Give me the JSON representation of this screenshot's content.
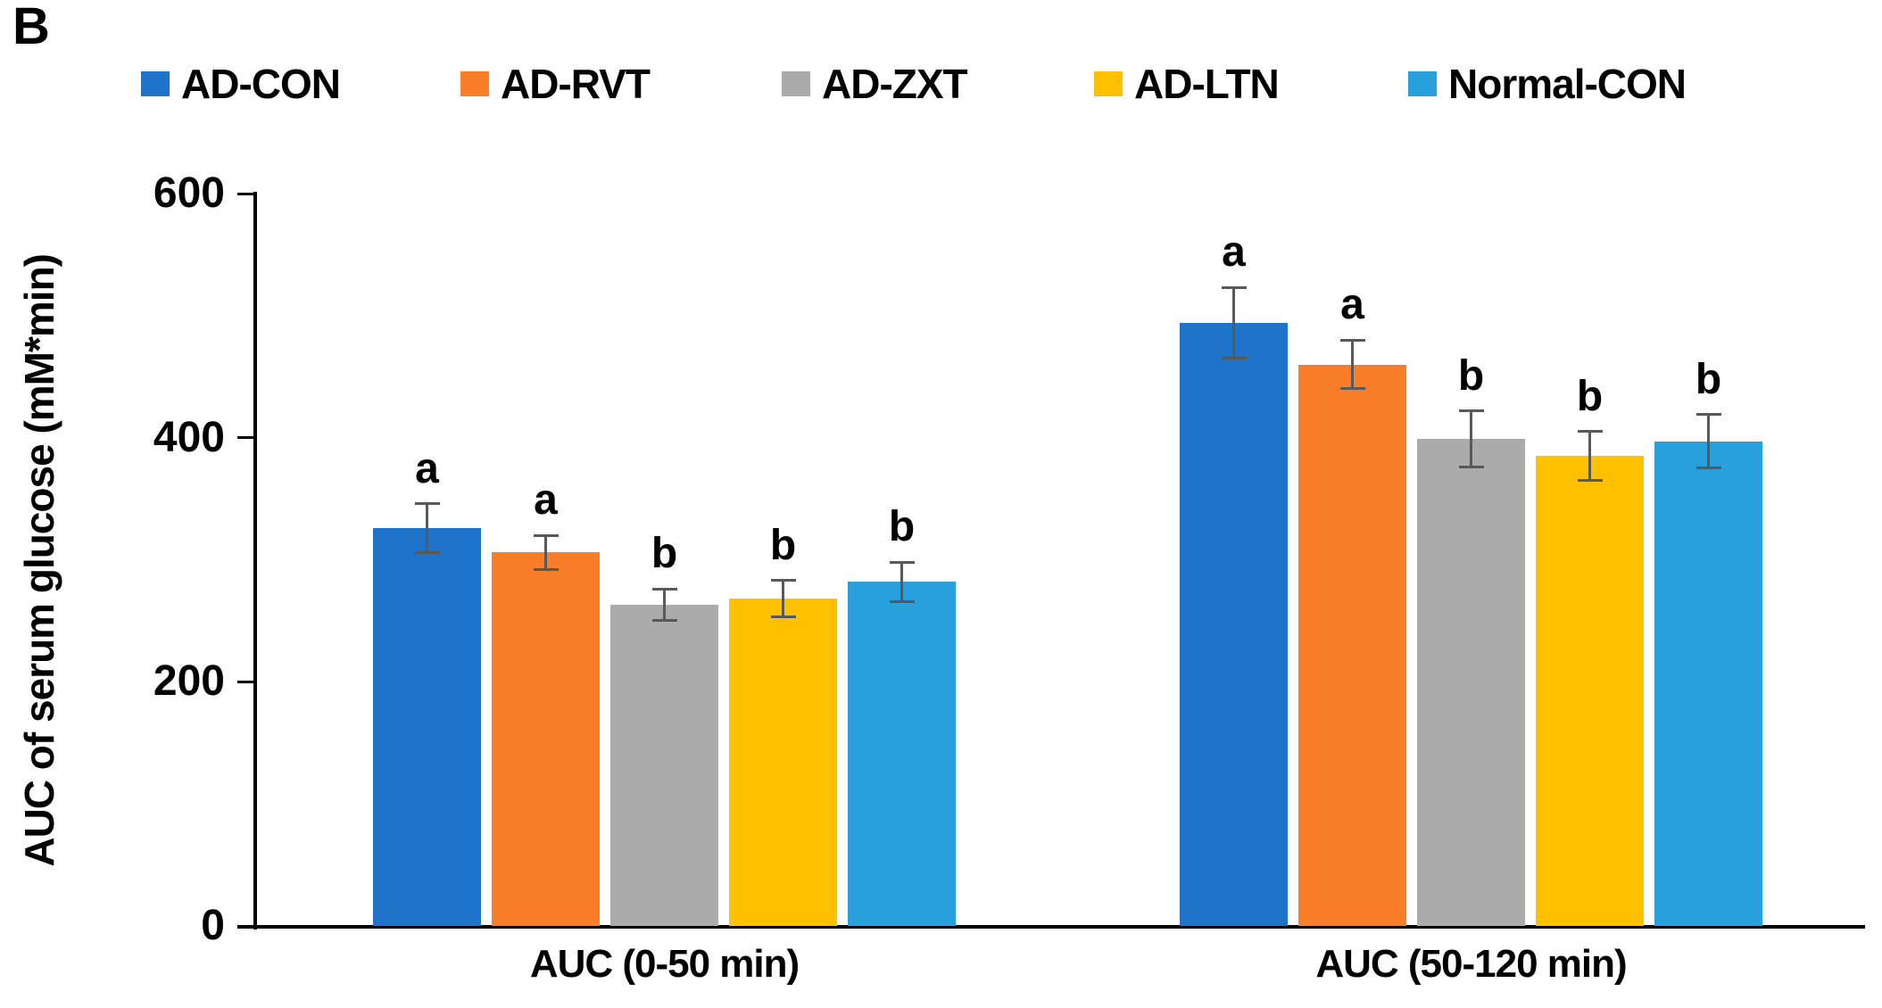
{
  "panel_label": "B",
  "chart_data": {
    "type": "bar",
    "title": "",
    "xlabel": "",
    "ylabel": "AUC of serum glucose (mM*min)",
    "ylim": [
      0,
      600
    ],
    "yticks": [
      0,
      200,
      400,
      600
    ],
    "grid": false,
    "legend_position": "top",
    "error_bar_color": "#595959",
    "axis_color": "#000000",
    "categories": [
      "AUC (0-50 min)",
      "AUC (50-120 min)"
    ],
    "series": [
      {
        "name": "AD-CON",
        "color": "#1F73C8",
        "values": [
          326,
          494
        ],
        "errors": [
          20,
          29
        ],
        "sig_letters": [
          "a",
          "a"
        ]
      },
      {
        "name": "AD-RVT",
        "color": "#FA7D29",
        "values": [
          306,
          460
        ],
        "errors": [
          14,
          20
        ],
        "sig_letters": [
          "a",
          "a"
        ]
      },
      {
        "name": "AD-ZXT",
        "color": "#ABABAB",
        "values": [
          263,
          399
        ],
        "errors": [
          13,
          23
        ],
        "sig_letters": [
          "b",
          "b"
        ]
      },
      {
        "name": "AD-LTN",
        "color": "#FFC000",
        "values": [
          268,
          385
        ],
        "errors": [
          15,
          20
        ],
        "sig_letters": [
          "b",
          "b"
        ]
      },
      {
        "name": "Normal-CON",
        "color": "#27A0DB",
        "values": [
          282,
          397
        ],
        "errors": [
          16,
          22
        ],
        "sig_letters": [
          "b",
          "b"
        ]
      }
    ]
  }
}
